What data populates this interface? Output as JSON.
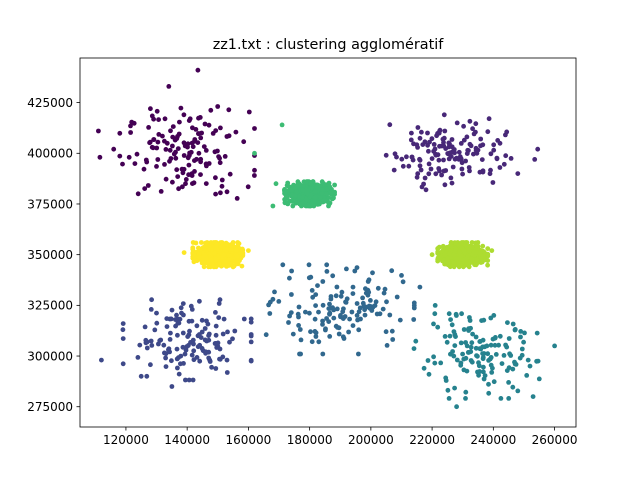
{
  "chart_data": {
    "type": "scatter",
    "title": "zz1.txt : clustering agglomératif",
    "xlabel": "",
    "ylabel": "",
    "xlim": [
      105000,
      267000
    ],
    "ylim": [
      265000,
      447000
    ],
    "x_ticks": [
      120000,
      140000,
      160000,
      180000,
      200000,
      220000,
      240000,
      260000
    ],
    "y_ticks": [
      275000,
      300000,
      325000,
      350000,
      375000,
      400000,
      425000
    ],
    "x_tick_labels": [
      "120000",
      "140000",
      "160000",
      "180000",
      "200000",
      "220000",
      "240000",
      "260000"
    ],
    "y_tick_labels": [
      "275000",
      "300000",
      "325000",
      "350000",
      "375000",
      "400000",
      "425000"
    ],
    "grid": false,
    "legend": "none",
    "series": [
      {
        "color": "#440154",
        "cluster": {
          "center": [
            140000,
            400000
          ],
          "spread": [
            10000,
            10500
          ],
          "count": 140,
          "shape": "sparse"
        },
        "points": [
          [
            111000,
            411000
          ],
          [
            111500,
            398000
          ],
          [
            143500,
            441000
          ],
          [
            134000,
            433000
          ],
          [
            128000,
            422000
          ],
          [
            116000,
            402000
          ],
          [
            124000,
            380000
          ],
          [
            153000,
            381000
          ],
          [
            141000,
            417000
          ]
        ]
      },
      {
        "color": "#482878",
        "cluster": {
          "center": [
            226000,
            401000
          ],
          "spread": [
            9000,
            8000
          ],
          "count": 140,
          "shape": "sparse"
        },
        "points": [
          [
            254500,
            402000
          ],
          [
            253500,
            397000
          ],
          [
            248000,
            390000
          ],
          [
            205000,
            399000
          ],
          [
            224000,
            419000
          ],
          [
            218000,
            382000
          ]
        ]
      },
      {
        "color": "#3e4989",
        "cluster": {
          "center": [
            140000,
            308000
          ],
          "spread": [
            9500,
            9000
          ],
          "count": 140,
          "shape": "sparse"
        },
        "points": [
          [
            112000,
            298000
          ],
          [
            119000,
            313000
          ],
          [
            144000,
            327000
          ],
          [
            125000,
            290000
          ],
          [
            153000,
            298000
          ],
          [
            135000,
            285000
          ]
        ]
      },
      {
        "color": "#31688e",
        "cluster": {
          "center": [
            190000,
            323000
          ],
          "spread": [
            11000,
            10000
          ],
          "count": 140,
          "shape": "sparse"
        },
        "points": [
          [
            167000,
            321000
          ],
          [
            168000,
            328000
          ],
          [
            192000,
            343000
          ],
          [
            216000,
            334000
          ],
          [
            214000,
            318000
          ],
          [
            183000,
            307000
          ]
        ]
      },
      {
        "color": "#26828e",
        "cluster": {
          "center": [
            235000,
            300000
          ],
          "spread": [
            9500,
            9500
          ],
          "count": 140,
          "shape": "sparse"
        },
        "points": [
          [
            221000,
            325000
          ],
          [
            260000,
            305000
          ],
          [
            228000,
            275000
          ],
          [
            253000,
            280000
          ],
          [
            219000,
            291000
          ],
          [
            245000,
            287000
          ]
        ]
      },
      {
        "color": "#3dbc74",
        "cluster": {
          "center": [
            180000,
            380000
          ],
          "spread": [
            3400,
            2500
          ],
          "count": 700,
          "shape": "dense"
        },
        "points": [
          [
            162000,
            400000
          ],
          [
            171000,
            414000
          ],
          [
            169000,
            385000
          ],
          [
            168000,
            374000
          ]
        ]
      },
      {
        "color": "#addc30",
        "cluster": {
          "center": [
            230000,
            350000
          ],
          "spread": [
            3400,
            2500
          ],
          "count": 700,
          "shape": "dense"
        },
        "points": [
          [
            220000,
            350000
          ],
          [
            239500,
            352000
          ]
        ]
      },
      {
        "color": "#fde725",
        "cluster": {
          "center": [
            150000,
            350000
          ],
          "spread": [
            3400,
            2500
          ],
          "count": 700,
          "shape": "dense"
        },
        "points": [
          [
            139000,
            351000
          ],
          [
            160000,
            352000
          ]
        ]
      }
    ]
  }
}
